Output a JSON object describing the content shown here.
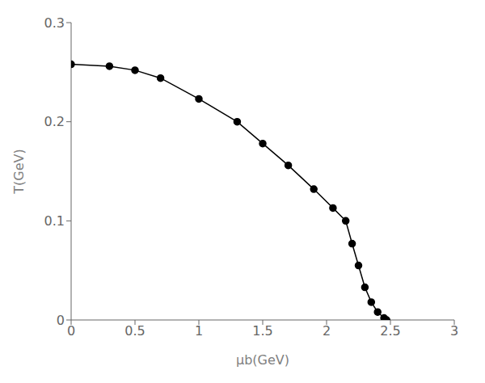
{
  "chart_data": {
    "type": "line",
    "x": [
      0.0,
      0.3,
      0.5,
      0.7,
      1.0,
      1.3,
      1.5,
      1.7,
      1.9,
      2.05,
      2.15,
      2.2,
      2.25,
      2.3,
      2.35,
      2.4,
      2.45,
      2.47
    ],
    "values": [
      0.258,
      0.256,
      0.252,
      0.244,
      0.223,
      0.2,
      0.178,
      0.156,
      0.132,
      0.113,
      0.1,
      0.077,
      0.055,
      0.033,
      0.018,
      0.008,
      0.002,
      0.0
    ],
    "color": "#000000",
    "marker": "circle",
    "xlabel": "μb(GeV)",
    "ylabel": "T(GeV)",
    "xlim": [
      0,
      3
    ],
    "ylim": [
      0,
      0.3
    ],
    "xticks": [
      0,
      0.5,
      1,
      1.5,
      2,
      2.5,
      3
    ],
    "yticks": [
      0,
      0.1,
      0.2,
      0.3
    ],
    "grid": false
  }
}
